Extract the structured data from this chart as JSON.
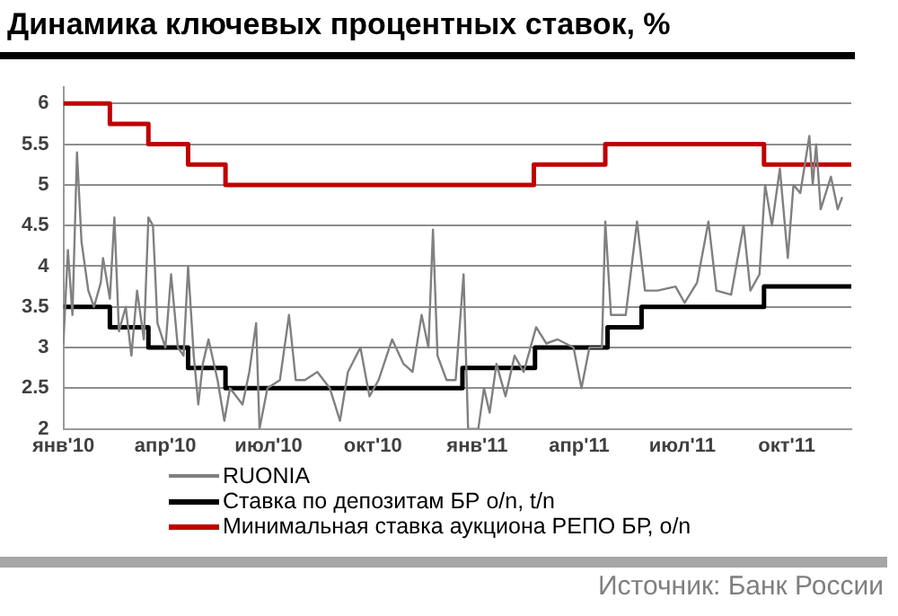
{
  "chart_data": {
    "type": "line",
    "title": "Динамика ключевых процентных ставок, %",
    "annotations": [
      "Источник: Банк России"
    ],
    "xlim": [
      "2010-01-01",
      "2011-11-27"
    ],
    "xticks": [
      {
        "value": "2010-01-01",
        "label": "янв'10"
      },
      {
        "value": "2010-04-01",
        "label": "апр'10"
      },
      {
        "value": "2010-07-01",
        "label": "июл'10"
      },
      {
        "value": "2010-10-01",
        "label": "окт'10"
      },
      {
        "value": "2011-01-01",
        "label": "янв'11"
      },
      {
        "value": "2011-04-01",
        "label": "апр'11"
      },
      {
        "value": "2011-07-01",
        "label": "июл'11"
      },
      {
        "value": "2011-10-01",
        "label": "окт'11"
      }
    ],
    "ylim": [
      2,
      6.2
    ],
    "yticks": [
      2,
      2.5,
      3,
      3.5,
      4,
      4.5,
      5,
      5.5,
      6
    ],
    "grid": "y",
    "legend": "bottom",
    "marker": "none",
    "line_style": "solid",
    "series": [
      {
        "name": "RUONIA",
        "color": "#808080",
        "type": "line",
        "x": [
          "2010-01-01",
          "2010-01-05",
          "2010-01-09",
          "2010-01-13",
          "2010-01-17",
          "2010-01-23",
          "2010-01-28",
          "2010-02-03",
          "2010-02-05",
          "2010-02-11",
          "2010-02-15",
          "2010-02-19",
          "2010-02-25",
          "2010-03-02",
          "2010-03-07",
          "2010-03-13",
          "2010-03-17",
          "2010-03-21",
          "2010-03-25",
          "2010-04-01",
          "2010-04-06",
          "2010-04-12",
          "2010-04-17",
          "2010-04-21",
          "2010-04-26",
          "2010-04-30",
          "2010-05-04",
          "2010-05-09",
          "2010-05-17",
          "2010-05-23",
          "2010-05-28",
          "2010-06-08",
          "2010-06-14",
          "2010-06-20",
          "2010-06-23",
          "2010-06-30",
          "2010-07-11",
          "2010-07-19",
          "2010-07-25",
          "2010-08-02",
          "2010-08-13",
          "2010-08-24",
          "2010-09-02",
          "2010-09-09",
          "2010-09-20",
          "2010-09-28",
          "2010-10-06",
          "2010-10-18",
          "2010-10-28",
          "2010-11-05",
          "2010-11-13",
          "2010-11-19",
          "2010-11-23",
          "2010-11-27",
          "2010-12-05",
          "2010-12-13",
          "2010-12-20",
          "2010-12-24",
          "2011-01-02",
          "2011-01-07",
          "2011-01-12",
          "2011-01-18",
          "2011-01-26",
          "2011-02-03",
          "2011-02-11",
          "2011-02-22",
          "2011-03-03",
          "2011-03-13",
          "2011-03-27",
          "2011-04-03",
          "2011-04-10",
          "2011-04-21",
          "2011-04-24",
          "2011-04-29",
          "2011-05-12",
          "2011-05-22",
          "2011-05-29",
          "2011-06-09",
          "2011-06-25",
          "2011-07-03",
          "2011-07-14",
          "2011-07-24",
          "2011-07-31",
          "2011-08-13",
          "2011-08-24",
          "2011-08-30",
          "2011-09-07",
          "2011-09-12",
          "2011-09-18",
          "2011-09-25",
          "2011-10-02",
          "2011-10-07",
          "2011-10-13",
          "2011-10-21",
          "2011-10-24",
          "2011-10-27",
          "2011-10-31",
          "2011-11-09",
          "2011-11-15",
          "2011-11-19"
        ],
        "values": [
          3.05,
          4.2,
          3.4,
          5.4,
          4.3,
          3.7,
          3.5,
          3.8,
          4.1,
          3.6,
          4.6,
          3.2,
          3.5,
          2.9,
          3.7,
          3.1,
          4.6,
          4.5,
          3.3,
          3.0,
          3.9,
          3.0,
          2.9,
          4.0,
          2.9,
          2.3,
          2.8,
          3.1,
          2.6,
          2.1,
          2.5,
          2.3,
          2.7,
          3.3,
          2.0,
          2.5,
          2.6,
          3.4,
          2.6,
          2.6,
          2.7,
          2.5,
          2.1,
          2.7,
          3.0,
          2.4,
          2.6,
          3.1,
          2.8,
          2.7,
          3.4,
          3.0,
          4.45,
          2.9,
          2.6,
          2.6,
          3.9,
          2.0,
          2.0,
          2.5,
          2.2,
          2.8,
          2.4,
          2.9,
          2.7,
          3.25,
          3.05,
          3.1,
          3.0,
          2.5,
          3.0,
          3.0,
          4.55,
          3.4,
          3.4,
          4.55,
          3.7,
          3.7,
          3.75,
          3.55,
          3.8,
          4.55,
          3.7,
          3.65,
          4.5,
          3.7,
          3.9,
          5.0,
          4.5,
          5.2,
          4.1,
          5.0,
          4.9,
          5.6,
          5.0,
          5.5,
          4.7,
          5.1,
          4.7,
          4.85
        ]
      },
      {
        "name": "Ставка по депозитам БР o/n, t/n",
        "color": "#000000",
        "type": "step",
        "x": [
          "2010-01-01",
          "2010-02-11",
          "2010-03-17",
          "2010-04-21",
          "2010-05-24",
          "2010-12-19",
          "2011-02-21",
          "2011-04-26",
          "2011-05-26",
          "2011-09-11",
          "2011-11-27"
        ],
        "values": [
          3.5,
          3.25,
          3.0,
          2.75,
          2.5,
          2.75,
          3.0,
          3.25,
          3.5,
          3.75,
          3.75
        ]
      },
      {
        "name": "Минимальная ставка аукциона РЕПО БР, o/n",
        "color": "#c00000",
        "type": "step",
        "x": [
          "2010-01-01",
          "2010-02-11",
          "2010-03-17",
          "2010-04-21",
          "2010-05-24",
          "2011-02-20",
          "2011-04-24",
          "2011-09-11",
          "2011-11-27"
        ],
        "values": [
          6.0,
          5.75,
          5.5,
          5.25,
          5.0,
          5.25,
          5.5,
          5.25,
          5.25
        ]
      }
    ]
  }
}
